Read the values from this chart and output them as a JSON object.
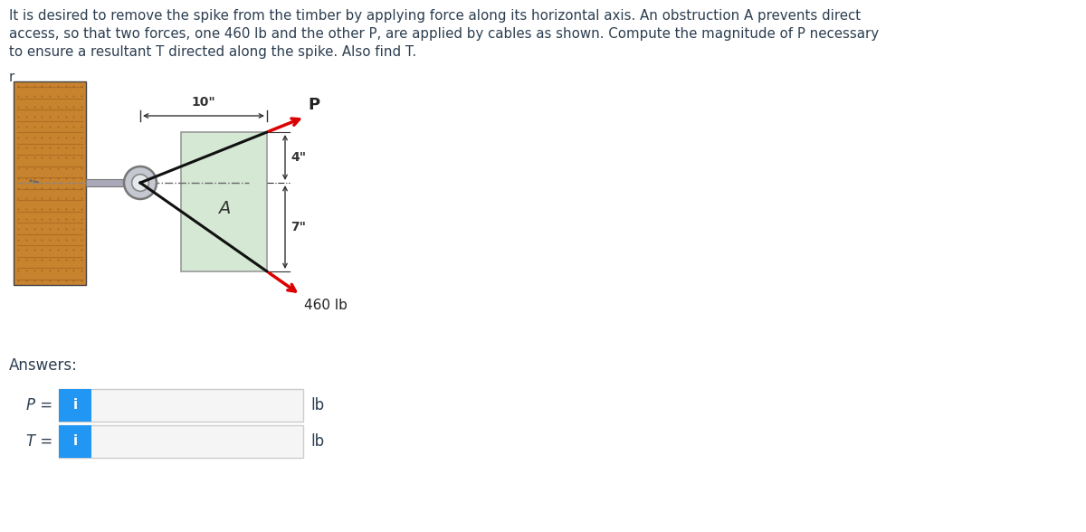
{
  "description_text": "It is desired to remove the spike from the timber by applying force along its horizontal axis. An obstruction A prevents direct\naccess, so that two forces, one 460 lb and the other P, are applied by cables as shown. Compute the magnitude of P necessary\nto ensure a resultant T directed along the spike. Also find T.",
  "r_label": "r",
  "answers_label": "Answers:",
  "P_label": "P =",
  "T_label": "T =",
  "lb_label": "lb",
  "i_label": "i",
  "dim_10": "10\"",
  "dim_4": "4\"",
  "dim_7": "7\"",
  "force_460": "460 lb",
  "force_P": "P",
  "A_label": "A",
  "wood_color": "#c8832e",
  "obstruction_color": "#d4e8d4",
  "obstruction_border": "#999999",
  "spike_color": "#b8b8c8",
  "arrow_red": "#dd0000",
  "arrow_black": "#111111",
  "bg_color": "#ffffff",
  "text_color": "#2c3e50",
  "blue_btn": "#2196f3",
  "input_bg": "#f5f5f5",
  "input_border": "#cccccc",
  "dim_color": "#333333"
}
